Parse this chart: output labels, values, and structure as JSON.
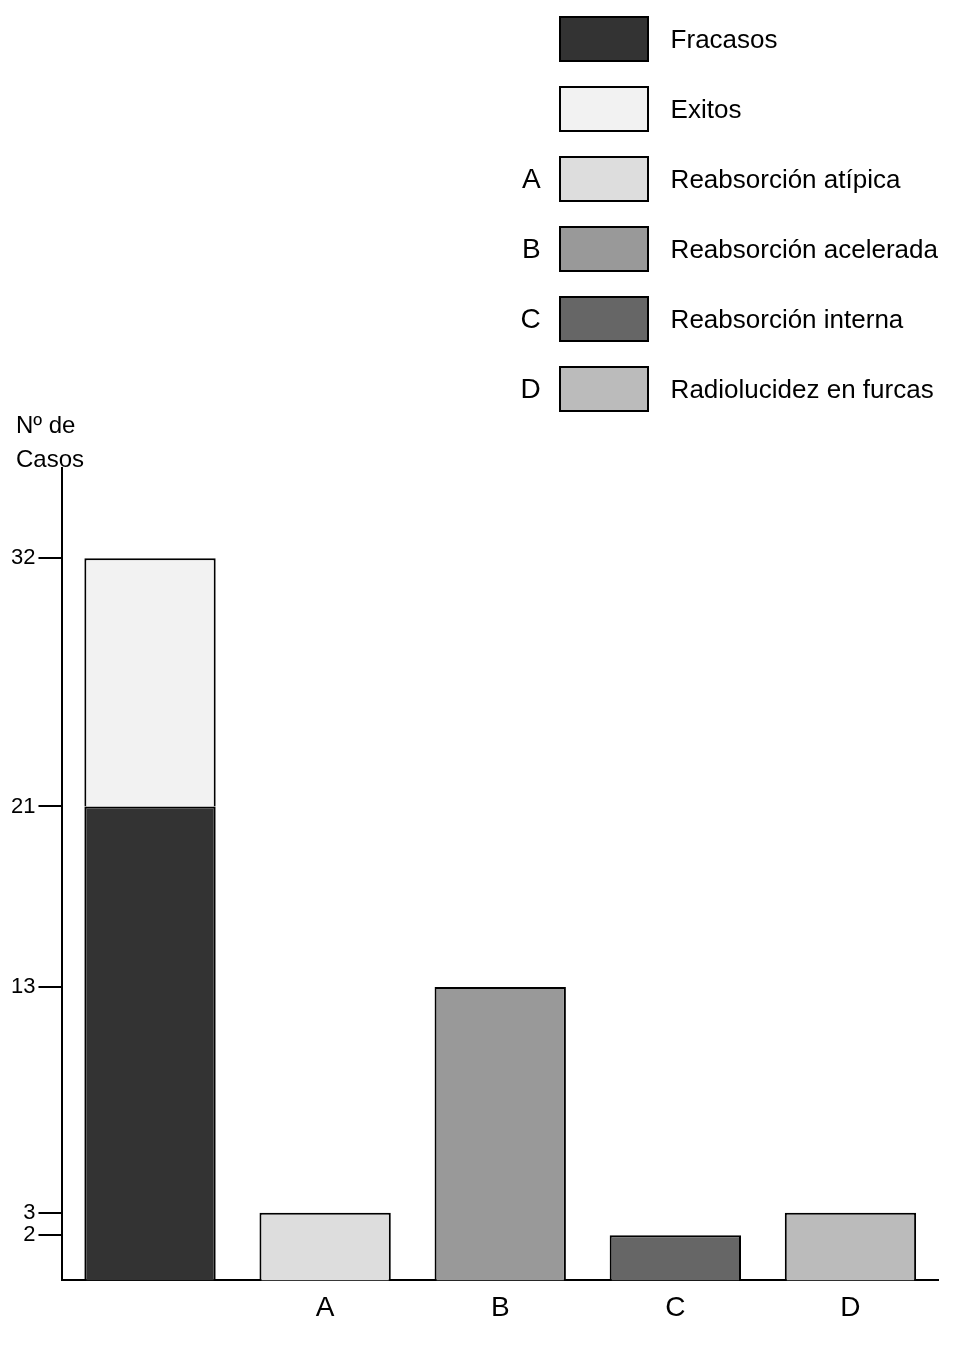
{
  "chart_data": {
    "type": "bar",
    "ylabel": "Nº de Casos",
    "categories": [
      null,
      "A",
      "B",
      "C",
      "D"
    ],
    "stacked": true,
    "legend": "top right",
    "grid": false,
    "ylim": [
      0,
      36
    ],
    "yticks": [
      2,
      3,
      13,
      21,
      32
    ],
    "series": [
      {
        "name": "Fracasos",
        "color": "#333333",
        "values": [
          21,
          null,
          null,
          null,
          null
        ]
      },
      {
        "name": "Exitos",
        "color": "#f2f2f2",
        "values": [
          11,
          null,
          null,
          null,
          null
        ]
      },
      {
        "name": "Reabsorción atípica",
        "color": "#dddddd",
        "values": [
          null,
          3,
          null,
          null,
          null
        ]
      },
      {
        "name": "Reabsorción acelerada",
        "color": "#999999",
        "values": [
          null,
          null,
          13,
          null,
          null
        ]
      },
      {
        "name": "Reabsorción interna",
        "color": "#666666",
        "values": [
          null,
          null,
          null,
          2,
          null
        ]
      },
      {
        "name": "Radiolucidez en furcas",
        "color": "#bbbbbb",
        "values": [
          null,
          null,
          null,
          null,
          3
        ]
      }
    ]
  }
}
